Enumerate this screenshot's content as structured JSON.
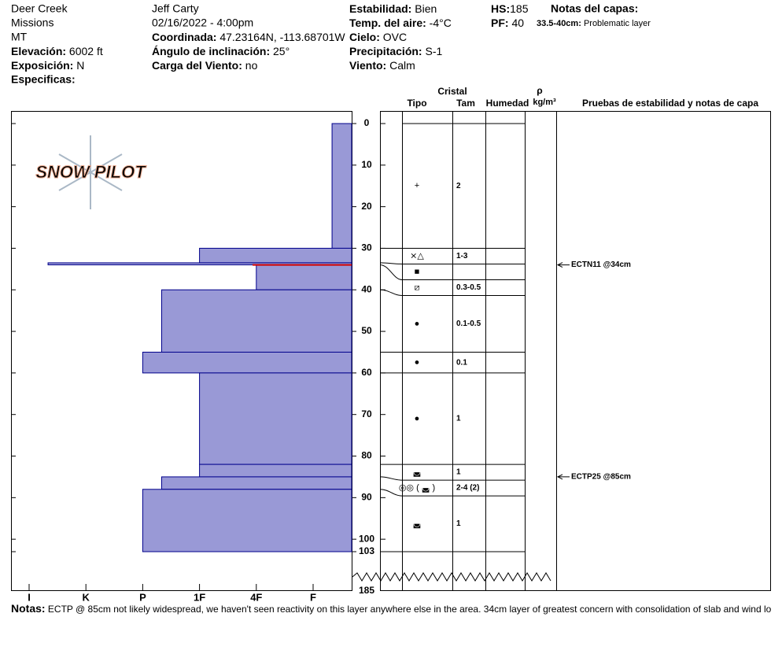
{
  "header": {
    "location": "Deer Creek",
    "range": "Missions",
    "state": "MT",
    "elevation": {
      "label": "Elevación:",
      "value": "6002 ft"
    },
    "aspect": {
      "label": "Exposición:",
      "value": "N"
    },
    "specifics": {
      "label": "Especificas:"
    },
    "observer": "Jeff Carty",
    "datetime": "02/16/2022 - 4:00pm",
    "coords": {
      "label": "Coordinada:",
      "value": "47.23164N, -113.68701W"
    },
    "slope": {
      "label": "Ángulo de inclinación:",
      "value": "25°"
    },
    "wind_load": {
      "label": "Carga del Viento:",
      "value": "no"
    },
    "stability": {
      "label": "Estabilidad:",
      "value": "Bien"
    },
    "air_temp": {
      "label": "Temp. del aire:",
      "value": "-4°C"
    },
    "sky": {
      "label": "Cielo:",
      "value": "OVC"
    },
    "precip": {
      "label": "Precipitación:",
      "value": "S-1"
    },
    "wind": {
      "label": "Viento:",
      "value": "Calm"
    },
    "hs": {
      "label": "HS:",
      "value": 185
    },
    "pf": {
      "label": "PF:",
      "value": 40
    },
    "layer_notes": {
      "label": "Notas del capas:",
      "range": "33.5-40cm:",
      "text": "Problematic layer"
    }
  },
  "logo": "SNOW PILOT",
  "table_header": {
    "crystal": "Cristal",
    "type": "Tipo",
    "size": "Tam",
    "moisture": "Humedad",
    "rho": "ρ",
    "density": "kg/m³",
    "tests": "Pruebas de estabilidad y notas de capa"
  },
  "chart_data": {
    "type": "snow_profile",
    "color": "#9999d6",
    "ylim": [
      0,
      103
    ],
    "yticks": [
      0,
      10,
      20,
      30,
      40,
      50,
      60,
      70,
      80,
      90,
      100,
      103
    ],
    "hardness_scale": [
      "I",
      "K",
      "P",
      "1F",
      "4F",
      "F"
    ],
    "layers": [
      {
        "top": 0,
        "bottom": 30,
        "hardness": "F-",
        "grain": "+",
        "size": "2"
      },
      {
        "top": 30,
        "bottom": 33.5,
        "hardness": "1F",
        "grain": "⨯△",
        "size": "1-3"
      },
      {
        "top": 33.5,
        "bottom": 34,
        "hardness": "I-",
        "grain": "■",
        "size": null
      },
      {
        "top": 34,
        "bottom": 40,
        "hardness": "4F",
        "grain": "⧄",
        "size": "0.3-0.5"
      },
      {
        "top": 40,
        "bottom": 55,
        "hardness": "P-",
        "grain": "●",
        "size": "0.1-0.5"
      },
      {
        "top": 55,
        "bottom": 60,
        "hardness": "P",
        "grain": "●",
        "size": "0.1"
      },
      {
        "top": 60,
        "bottom": 82,
        "hardness": "1F",
        "grain": "●",
        "size": "1"
      },
      {
        "top": 82,
        "bottom": 85,
        "hardness": "1F",
        "grain": "◛",
        "size": "1"
      },
      {
        "top": 85,
        "bottom": 88,
        "hardness": "P-",
        "grain": "◎◎ ( ◛ )",
        "size": "2-4 (2)"
      },
      {
        "top": 88,
        "bottom": 103,
        "hardness": "P",
        "grain": "◛",
        "size": "1"
      }
    ],
    "tests": [
      {
        "depth": 34,
        "label": "ECTN11 @34cm"
      },
      {
        "depth": 85,
        "label": "ECTP25 @85cm"
      }
    ]
  },
  "notes": {
    "label": "Notas:",
    "text": "ECTP @ 85cm not likely widespread, we haven't seen reactivity on this layer anywhere else in the area. 34cm layer of greatest concern with consolidation of slab and wind lo"
  }
}
